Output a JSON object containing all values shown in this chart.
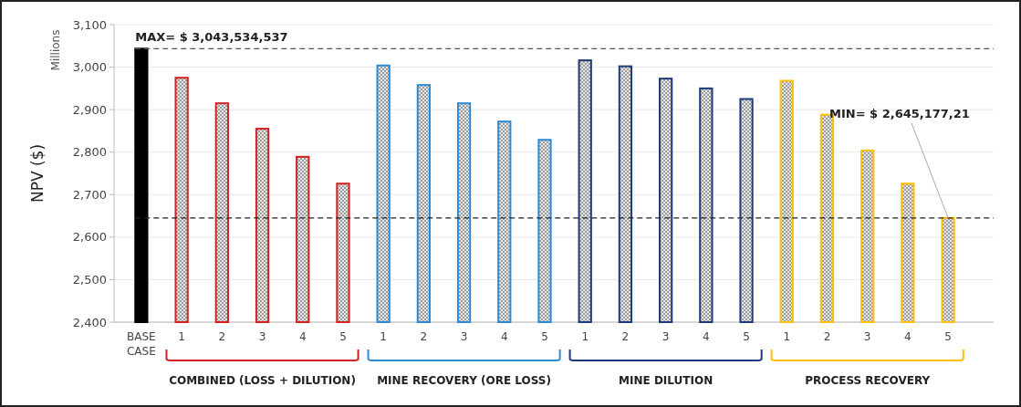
{
  "chart_data": {
    "type": "bar",
    "ylabel": "NPV ($)",
    "categories": [
      "BASE CASE",
      "1",
      "2",
      "3",
      "4",
      "5",
      "1",
      "2",
      "3",
      "4",
      "5",
      "1",
      "2",
      "3",
      "4",
      "5",
      "1",
      "2",
      "3",
      "4",
      "5"
    ],
    "values": [
      3043.5,
      2975,
      2915,
      2855,
      2789,
      2726,
      3004,
      2958,
      2915,
      2872,
      2829,
      3016,
      3002,
      2973,
      2950,
      2925,
      2968,
      2888,
      2804,
      2726,
      2645.2
    ],
    "colors": [
      "#000000",
      "#d42020",
      "#d42020",
      "#d42020",
      "#d42020",
      "#d42020",
      "#2e8bd6",
      "#2e8bd6",
      "#2e8bd6",
      "#2e8bd6",
      "#2e8bd6",
      "#1f3a7a",
      "#1f3a7a",
      "#1f3a7a",
      "#1f3a7a",
      "#1f3a7a",
      "#ffc000",
      "#ffc000",
      "#ffc000",
      "#ffc000",
      "#ffc000"
    ],
    "ylim": [
      2400,
      3100
    ],
    "yticks": [
      {
        "value": 2400,
        "label": "2,400"
      },
      {
        "value": 2500,
        "label": "2,500"
      },
      {
        "value": 2600,
        "label": "2,600"
      },
      {
        "value": 2700,
        "label": "2,700"
      },
      {
        "value": 2800,
        "label": "2,800"
      },
      {
        "value": 2900,
        "label": "2,900"
      },
      {
        "value": 3000,
        "label": "3,000"
      },
      {
        "value": 3100,
        "label": "3,100"
      }
    ],
    "grid": "y",
    "ref_lines": [
      {
        "axis": "y",
        "value": 3043.5,
        "label": "MAX= $ 3,043,534,537",
        "line_style": "dashed",
        "color": "#555555"
      },
      {
        "axis": "y",
        "value": 2645.2,
        "label": "MIN= $ 2,645,177,21",
        "line_style": "dashed",
        "color": "#222222"
      }
    ],
    "annotations": [
      "Millions",
      "COMBINED (LOSS + DILUTION)",
      "MINE RECOVERY (ORE LOSS)",
      "MINE DILUTION",
      "PROCESS RECOVERY"
    ]
  }
}
